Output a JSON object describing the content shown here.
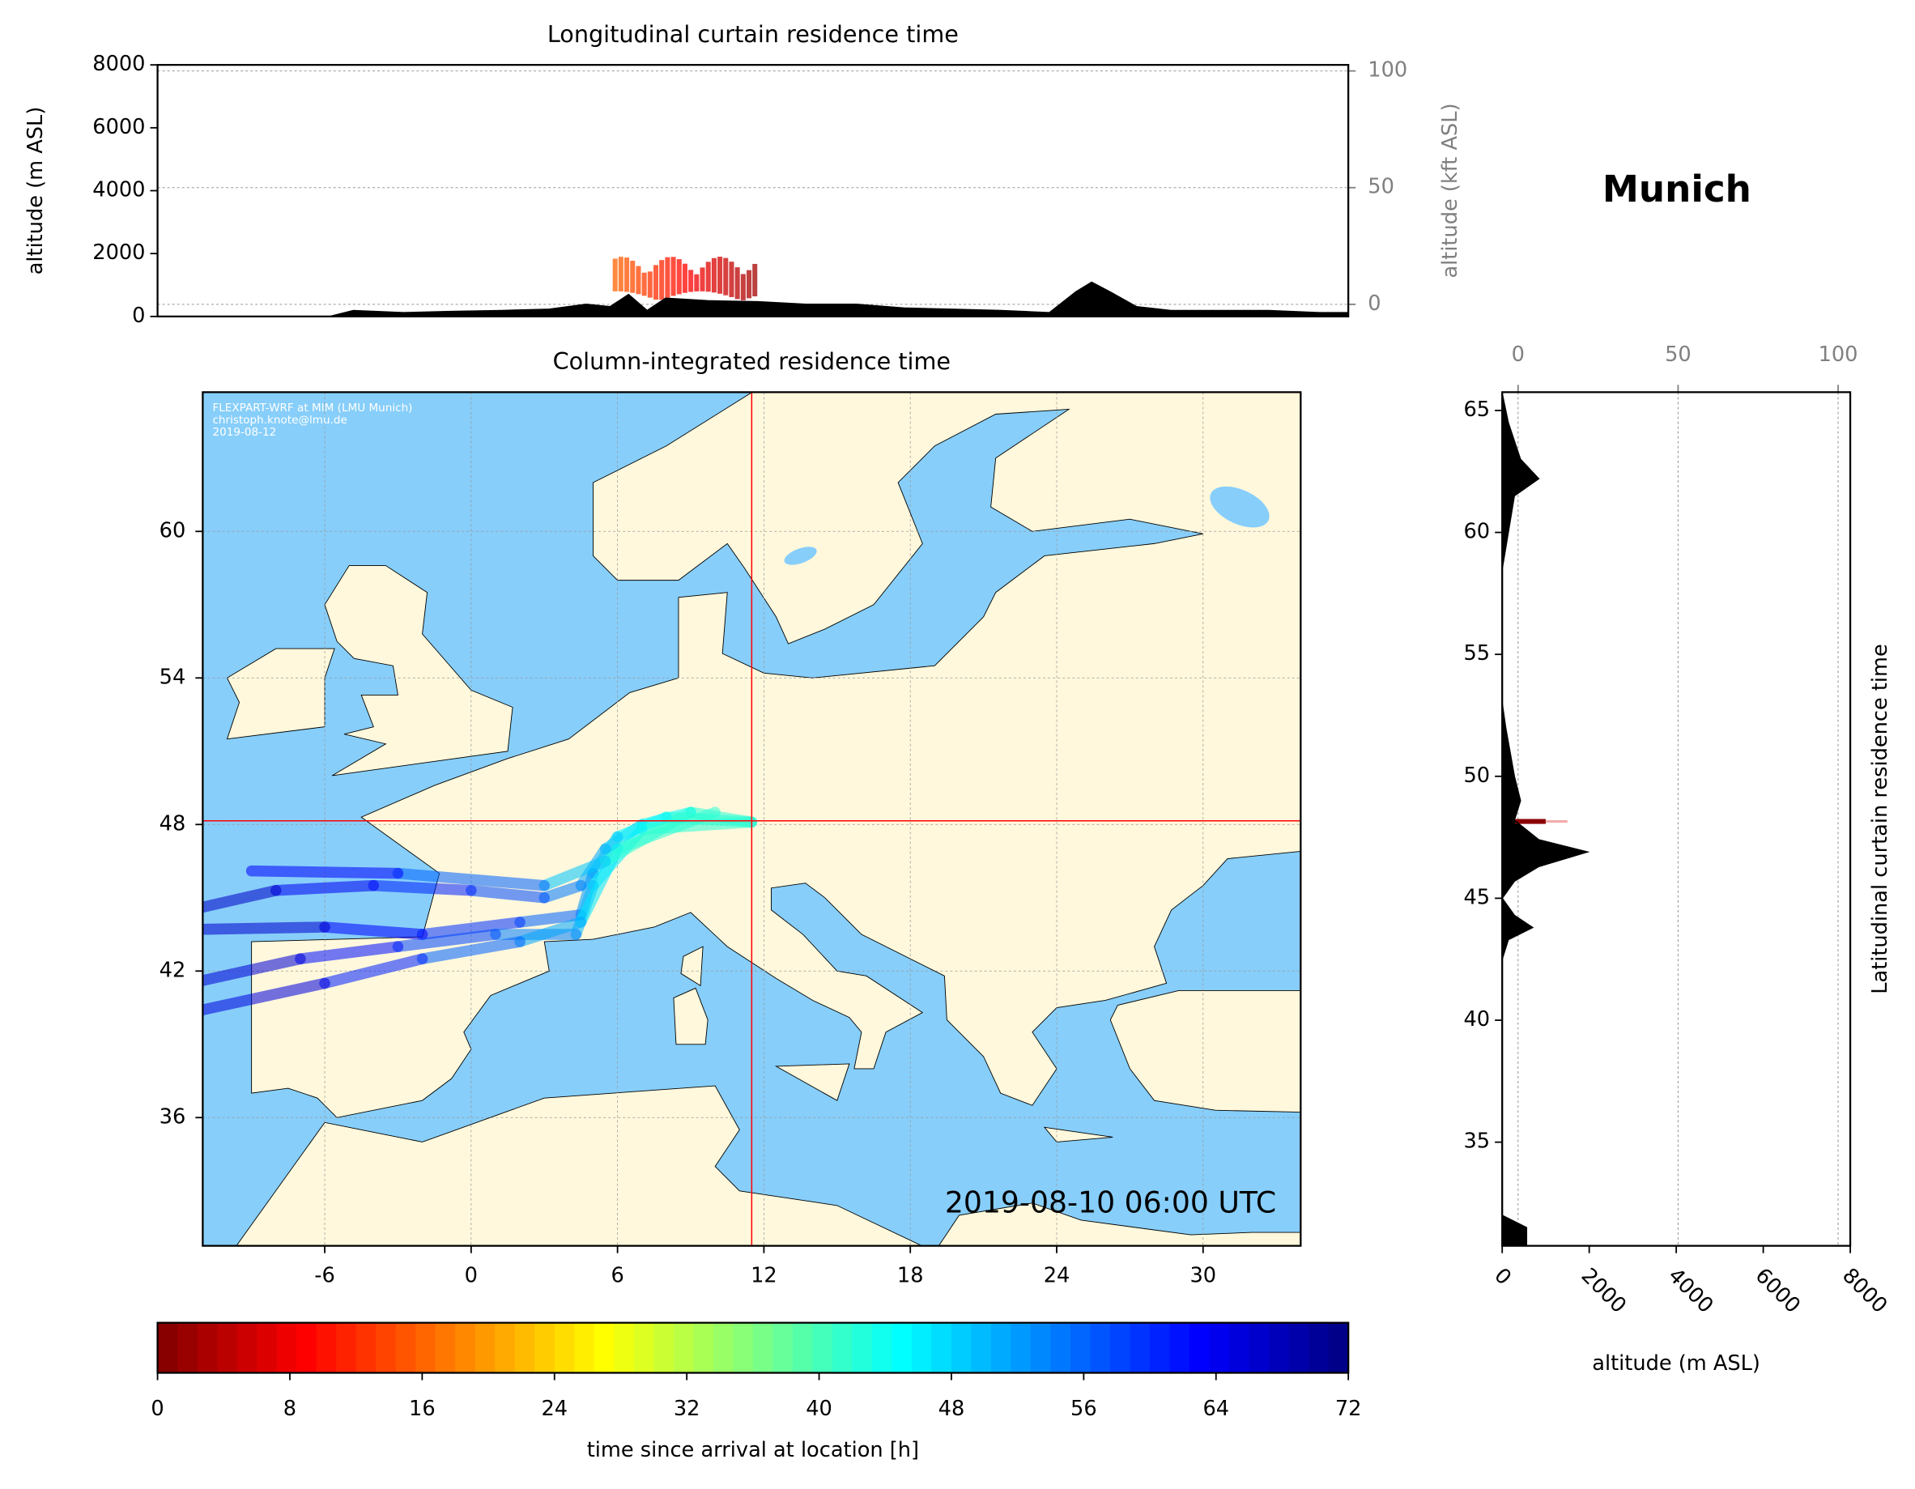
{
  "title": "Munich",
  "chart_data": [
    {
      "type": "area",
      "title": "Longitudinal curtain residence time",
      "ylabel": "altitude (m ASL)",
      "y2label": "altitude (kft ASL)",
      "x": [
        -11,
        -4.5,
        -3.6,
        -1.7,
        0.1,
        2.0,
        3.8,
        5.2,
        6.1,
        6.8,
        7.5,
        8.2,
        9.8,
        11.7,
        13.5,
        15.4,
        17.2,
        19.0,
        20.9,
        22.7,
        23.7,
        24.3,
        25.0,
        26.0,
        27.3,
        29.2,
        31.0,
        32.9,
        34
      ],
      "values": [
        0,
        0,
        190,
        120,
        160,
        190,
        230,
        390,
        310,
        700,
        190,
        580,
        500,
        470,
        390,
        390,
        270,
        230,
        190,
        120,
        780,
        1090,
        780,
        310,
        190,
        190,
        190,
        120,
        120
      ],
      "color": "#000000",
      "xlim": [
        -11,
        34
      ],
      "ylim": [
        0,
        8000
      ],
      "yticks": [
        0,
        2000,
        4000,
        6000,
        8000
      ],
      "y2lim": [
        -5.2,
        102.6
      ],
      "y2ticks": [
        0,
        50,
        100
      ],
      "grid": true
    },
    {
      "type": "map",
      "title": "Column-integrated residence time",
      "xlim": [
        -11,
        34
      ],
      "ylim": [
        30.75,
        65.7
      ],
      "xticks": [
        -6,
        0,
        6,
        12,
        18,
        24,
        30
      ],
      "yticks": [
        36,
        42,
        48,
        54,
        60
      ],
      "grid": true,
      "location": {
        "lon": 11.5,
        "lat": 48.15
      },
      "marker_color": "#ff0000",
      "annotations": [
        "FLEXPART-WRF at MIM (LMU Munich)",
        "christoph.knote@lmu.de",
        "2019-08-12"
      ],
      "timestamp": "2019-08-10 06:00 UTC"
    },
    {
      "type": "area",
      "orientation": "horizontal",
      "ylabel": "Latitudinal curtain residence time",
      "xlabel": "altitude (m ASL)",
      "y": [
        65.7,
        64.5,
        63,
        62.2,
        61.5,
        60,
        58.5,
        53,
        52,
        50,
        49,
        48.2,
        47.4,
        46.9,
        46.3,
        45.7,
        45,
        44.3,
        43.8,
        43.3,
        42.5,
        32,
        31.5,
        30.75
      ],
      "values": [
        0,
        140,
        420,
        840,
        280,
        140,
        0,
        0,
        80,
        280,
        420,
        280,
        840,
        1960,
        840,
        280,
        0,
        280,
        700,
        140,
        0,
        0,
        560,
        560
      ],
      "color": "#000000",
      "xlim": [
        0,
        8000
      ],
      "xticks": [
        0,
        2000,
        4000,
        6000,
        8000
      ],
      "x2lim": [
        -4.96,
        103.8
      ],
      "x2ticks": [
        0,
        50,
        100
      ],
      "ylim": [
        30.75,
        65.75
      ],
      "yticks": [
        35,
        40,
        45,
        50,
        55,
        60,
        65
      ],
      "grid": true
    },
    {
      "type": "colorbar",
      "label": "time since arrival at location [h]",
      "colormap": "jet_r",
      "xlim": [
        0,
        72
      ],
      "xticks": [
        0,
        8,
        16,
        24,
        32,
        40,
        48,
        56,
        64,
        72
      ]
    }
  ]
}
